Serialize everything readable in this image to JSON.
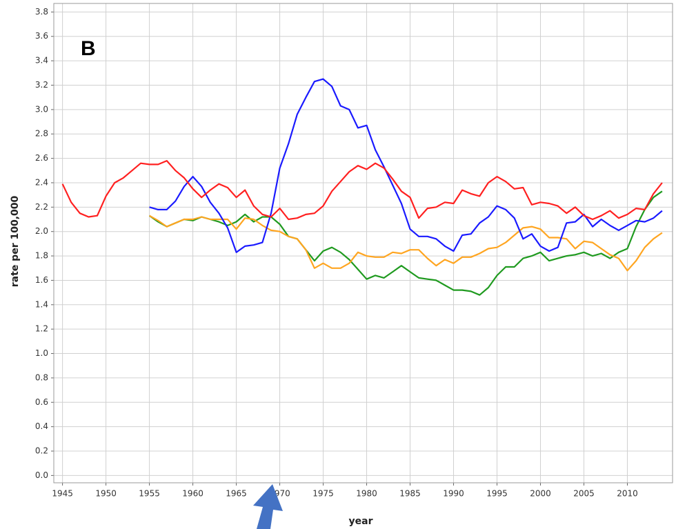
{
  "chart_data": {
    "type": "line",
    "annotation": "B",
    "xlabel": "year",
    "ylabel": "rate per 100,000",
    "x": [
      1945,
      1946,
      1947,
      1948,
      1949,
      1950,
      1951,
      1952,
      1953,
      1954,
      1955,
      1956,
      1957,
      1958,
      1959,
      1960,
      1961,
      1962,
      1963,
      1964,
      1965,
      1966,
      1967,
      1968,
      1969,
      1970,
      1971,
      1972,
      1973,
      1974,
      1975,
      1976,
      1977,
      1978,
      1979,
      1980,
      1981,
      1982,
      1983,
      1984,
      1985,
      1986,
      1987,
      1988,
      1989,
      1990,
      1991,
      1992,
      1993,
      1994,
      1995,
      1996,
      1997,
      1998,
      1999,
      2000,
      2001,
      2002,
      2003,
      2004,
      2005,
      2006,
      2007,
      2008,
      2009,
      2010,
      2011,
      2012,
      2013,
      2014
    ],
    "series": [
      {
        "color": "#ff2020",
        "values": [
          2.39,
          2.24,
          2.15,
          2.12,
          2.13,
          2.29,
          2.4,
          2.44,
          2.5,
          2.56,
          2.55,
          2.55,
          2.58,
          2.5,
          2.44,
          2.35,
          2.28,
          2.34,
          2.39,
          2.36,
          2.28,
          2.34,
          2.21,
          2.14,
          2.12,
          2.19,
          2.1,
          2.11,
          2.14,
          2.15,
          2.21,
          2.33,
          2.41,
          2.49,
          2.54,
          2.51,
          2.56,
          2.52,
          2.43,
          2.33,
          2.28,
          2.11,
          2.19,
          2.2,
          2.24,
          2.23,
          2.34,
          2.31,
          2.29,
          2.4,
          2.45,
          2.41,
          2.35,
          2.36,
          2.22,
          2.24,
          2.23,
          2.21,
          2.15,
          2.2,
          2.13,
          2.1,
          2.13,
          2.17,
          2.11,
          2.14,
          2.19,
          2.18,
          2.31,
          2.4
        ]
      },
      {
        "color": "#1a1aff",
        "values": [
          null,
          null,
          null,
          null,
          null,
          null,
          null,
          null,
          null,
          null,
          2.2,
          2.18,
          2.18,
          2.25,
          2.37,
          2.45,
          2.37,
          2.24,
          2.15,
          2.03,
          1.83,
          1.88,
          1.89,
          1.91,
          2.15,
          2.52,
          2.72,
          2.96,
          3.1,
          3.23,
          3.25,
          3.19,
          3.03,
          3.0,
          2.85,
          2.87,
          2.67,
          2.53,
          2.38,
          2.23,
          2.02,
          1.96,
          1.96,
          1.94,
          1.88,
          1.84,
          1.97,
          1.98,
          2.07,
          2.12,
          2.21,
          2.18,
          2.11,
          1.94,
          1.98,
          1.88,
          1.84,
          1.87,
          2.07,
          2.08,
          2.14,
          2.04,
          2.1,
          2.05,
          2.01,
          2.05,
          2.09,
          2.08,
          2.11,
          2.17
        ]
      },
      {
        "color": "#ffa520",
        "values": [
          null,
          null,
          null,
          null,
          null,
          null,
          null,
          null,
          null,
          null,
          2.13,
          2.09,
          2.04,
          2.07,
          2.1,
          2.1,
          2.12,
          2.1,
          2.1,
          2.1,
          2.02,
          2.11,
          2.1,
          2.05,
          2.01,
          2.0,
          1.96,
          1.94,
          1.85,
          1.7,
          1.74,
          1.7,
          1.7,
          1.74,
          1.83,
          1.8,
          1.79,
          1.79,
          1.83,
          1.82,
          1.85,
          1.85,
          1.78,
          1.72,
          1.77,
          1.74,
          1.79,
          1.79,
          1.82,
          1.86,
          1.87,
          1.91,
          1.97,
          2.03,
          2.04,
          2.02,
          1.95,
          1.95,
          1.94,
          1.86,
          1.92,
          1.91,
          1.86,
          1.81,
          1.78,
          1.68,
          1.76,
          1.87,
          1.94,
          1.99
        ]
      },
      {
        "color": "#1f9a1f",
        "values": [
          null,
          null,
          null,
          null,
          null,
          null,
          null,
          null,
          null,
          null,
          2.13,
          2.08,
          2.04,
          2.07,
          2.1,
          2.09,
          2.12,
          2.1,
          2.08,
          2.05,
          2.08,
          2.14,
          2.08,
          2.12,
          2.12,
          2.06,
          1.96,
          1.94,
          1.85,
          1.76,
          1.84,
          1.87,
          1.83,
          1.77,
          1.69,
          1.61,
          1.64,
          1.62,
          1.67,
          1.72,
          1.67,
          1.62,
          1.61,
          1.6,
          1.56,
          1.52,
          1.52,
          1.51,
          1.48,
          1.54,
          1.64,
          1.71,
          1.71,
          1.78,
          1.8,
          1.83,
          1.76,
          1.78,
          1.8,
          1.81,
          1.83,
          1.8,
          1.82,
          1.78,
          1.83,
          1.86,
          2.04,
          2.18,
          2.28,
          2.33
        ]
      }
    ],
    "xlim": [
      1944,
      2015.2
    ],
    "ylim": [
      -0.06,
      3.87
    ],
    "xticks": [
      1945,
      1950,
      1955,
      1960,
      1965,
      1970,
      1975,
      1980,
      1985,
      1990,
      1995,
      2000,
      2005,
      2010
    ],
    "yticks": [
      {
        "value": 0,
        "label": "0.0"
      },
      0.2,
      0.4,
      0.6,
      0.8,
      {
        "value": 1,
        "label": "1.0"
      },
      1.2,
      1.4,
      1.6,
      1.8,
      {
        "value": 2,
        "label": "2.0"
      },
      2.2,
      2.4,
      2.6,
      2.8,
      {
        "value": 3,
        "label": "3.0"
      },
      3.2,
      3.4,
      3.6,
      3.8
    ],
    "grid": true
  }
}
